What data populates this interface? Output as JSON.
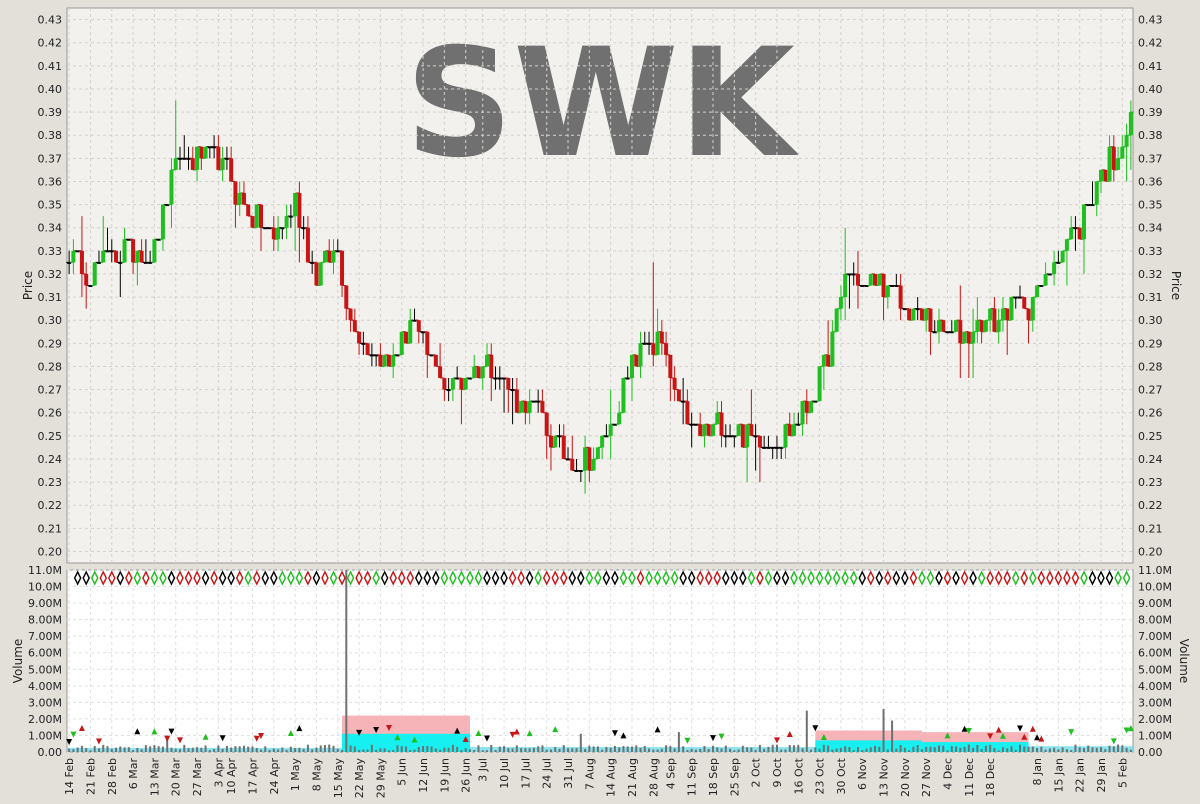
{
  "ticker": "SWK",
  "chart_data": [
    {
      "type": "ohlc",
      "panel": "price",
      "ylabel": "Price",
      "ylim": [
        0.195,
        0.435
      ],
      "yticks": [
        "0.20",
        "0.21",
        "0.22",
        "0.23",
        "0.24",
        "0.25",
        "0.26",
        "0.27",
        "0.28",
        "0.29",
        "0.30",
        "0.31",
        "0.32",
        "0.33",
        "0.34",
        "0.35",
        "0.36",
        "0.37",
        "0.38",
        "0.39",
        "0.40",
        "0.41",
        "0.42",
        "0.43"
      ],
      "grid": true,
      "colors": {
        "up": "#1fbf1f",
        "down": "#c81414",
        "flat": "#000000"
      },
      "x_count": 250,
      "xticks": [
        {
          "i": 0,
          "label": "14 Feb"
        },
        {
          "i": 5,
          "label": "21 Feb"
        },
        {
          "i": 10,
          "label": "28 Feb"
        },
        {
          "i": 15,
          "label": "6 Mar"
        },
        {
          "i": 20,
          "label": "13 Mar"
        },
        {
          "i": 25,
          "label": "20 Mar"
        },
        {
          "i": 30,
          "label": "27 Mar"
        },
        {
          "i": 35,
          "label": "3 Apr"
        },
        {
          "i": 38,
          "label": "10 Apr"
        },
        {
          "i": 43,
          "label": "17 Apr"
        },
        {
          "i": 48,
          "label": "24 Apr"
        },
        {
          "i": 53,
          "label": "1 May"
        },
        {
          "i": 58,
          "label": "8 May"
        },
        {
          "i": 63,
          "label": "15 May"
        },
        {
          "i": 68,
          "label": "22 May"
        },
        {
          "i": 73,
          "label": "29 May"
        },
        {
          "i": 78,
          "label": "5 Jun"
        },
        {
          "i": 83,
          "label": "12 Jun"
        },
        {
          "i": 88,
          "label": "19 Jun"
        },
        {
          "i": 93,
          "label": "26 Jun"
        },
        {
          "i": 97,
          "label": "3 Jul"
        },
        {
          "i": 102,
          "label": "10 Jul"
        },
        {
          "i": 107,
          "label": "17 Jul"
        },
        {
          "i": 112,
          "label": "24 Jul"
        },
        {
          "i": 117,
          "label": "31 Jul"
        },
        {
          "i": 122,
          "label": "7 Aug"
        },
        {
          "i": 127,
          "label": "14 Aug"
        },
        {
          "i": 132,
          "label": "21 Aug"
        },
        {
          "i": 137,
          "label": "28 Aug"
        },
        {
          "i": 141,
          "label": "4 Sep"
        },
        {
          "i": 146,
          "label": "11 Sep"
        },
        {
          "i": 151,
          "label": "18 Sep"
        },
        {
          "i": 156,
          "label": "25 Sep"
        },
        {
          "i": 161,
          "label": "2 Oct"
        },
        {
          "i": 166,
          "label": "9 Oct"
        },
        {
          "i": 171,
          "label": "16 Oct"
        },
        {
          "i": 176,
          "label": "23 Oct"
        },
        {
          "i": 181,
          "label": "30 Oct"
        },
        {
          "i": 186,
          "label": "6 Nov"
        },
        {
          "i": 191,
          "label": "13 Nov"
        },
        {
          "i": 196,
          "label": "20 Nov"
        },
        {
          "i": 201,
          "label": "27 Nov"
        },
        {
          "i": 206,
          "label": "4 Dec"
        },
        {
          "i": 211,
          "label": "11 Dec"
        },
        {
          "i": 216,
          "label": "18 Dec"
        },
        {
          "i": 227,
          "label": "8 Jan"
        },
        {
          "i": 232,
          "label": "15 Jan"
        },
        {
          "i": 237,
          "label": "22 Jan"
        },
        {
          "i": 242,
          "label": "29 Jan"
        },
        {
          "i": 247,
          "label": "5 Feb"
        }
      ],
      "anchors": [
        [
          0,
          0.33
        ],
        [
          5,
          0.32
        ],
        [
          10,
          0.33
        ],
        [
          15,
          0.33
        ],
        [
          20,
          0.33
        ],
        [
          25,
          0.37
        ],
        [
          30,
          0.37
        ],
        [
          35,
          0.37
        ],
        [
          38,
          0.36
        ],
        [
          43,
          0.345
        ],
        [
          48,
          0.335
        ],
        [
          53,
          0.35
        ],
        [
          58,
          0.32
        ],
        [
          63,
          0.33
        ],
        [
          66,
          0.3
        ],
        [
          70,
          0.29
        ],
        [
          75,
          0.28
        ],
        [
          80,
          0.3
        ],
        [
          85,
          0.28
        ],
        [
          90,
          0.27
        ],
        [
          95,
          0.28
        ],
        [
          100,
          0.28
        ],
        [
          105,
          0.265
        ],
        [
          110,
          0.26
        ],
        [
          114,
          0.245
        ],
        [
          120,
          0.24
        ],
        [
          124,
          0.24
        ],
        [
          127,
          0.255
        ],
        [
          132,
          0.28
        ],
        [
          135,
          0.29
        ],
        [
          139,
          0.29
        ],
        [
          143,
          0.26
        ],
        [
          148,
          0.25
        ],
        [
          153,
          0.255
        ],
        [
          158,
          0.25
        ],
        [
          163,
          0.25
        ],
        [
          168,
          0.25
        ],
        [
          172,
          0.26
        ],
        [
          176,
          0.275
        ],
        [
          179,
          0.29
        ],
        [
          182,
          0.32
        ],
        [
          186,
          0.315
        ],
        [
          191,
          0.315
        ],
        [
          196,
          0.305
        ],
        [
          201,
          0.3
        ],
        [
          206,
          0.295
        ],
        [
          211,
          0.295
        ],
        [
          216,
          0.3
        ],
        [
          221,
          0.305
        ],
        [
          227,
          0.31
        ],
        [
          232,
          0.33
        ],
        [
          237,
          0.34
        ],
        [
          242,
          0.365
        ],
        [
          245,
          0.37
        ],
        [
          249,
          0.385
        ]
      ]
    },
    {
      "type": "bar",
      "panel": "volume",
      "ylabel": "Volume",
      "ylim": [
        0,
        11000000
      ],
      "yticks": [
        "0.00",
        "1.00M",
        "2.00M",
        "3.00M",
        "4.00M",
        "5.00M",
        "6.00M",
        "7.00M",
        "8.00M",
        "9.00M",
        "10.0M",
        "11.0M"
      ],
      "bands": [
        {
          "from": 64,
          "to": 94,
          "pink": 2.2,
          "cyan": 1.1
        },
        {
          "from": 175,
          "to": 200,
          "pink": 1.3,
          "cyan": 0.7
        },
        {
          "from": 200,
          "to": 225,
          "pink": 1.2,
          "cyan": 0.6
        }
      ],
      "spikes": [
        {
          "i": 65,
          "value": 11.0
        },
        {
          "i": 23,
          "value": 1.0
        },
        {
          "i": 173,
          "value": 2.5
        },
        {
          "i": 191,
          "value": 2.6
        },
        {
          "i": 193,
          "value": 1.9
        },
        {
          "i": 143,
          "value": 1.2
        },
        {
          "i": 120,
          "value": 1.1
        }
      ]
    }
  ]
}
